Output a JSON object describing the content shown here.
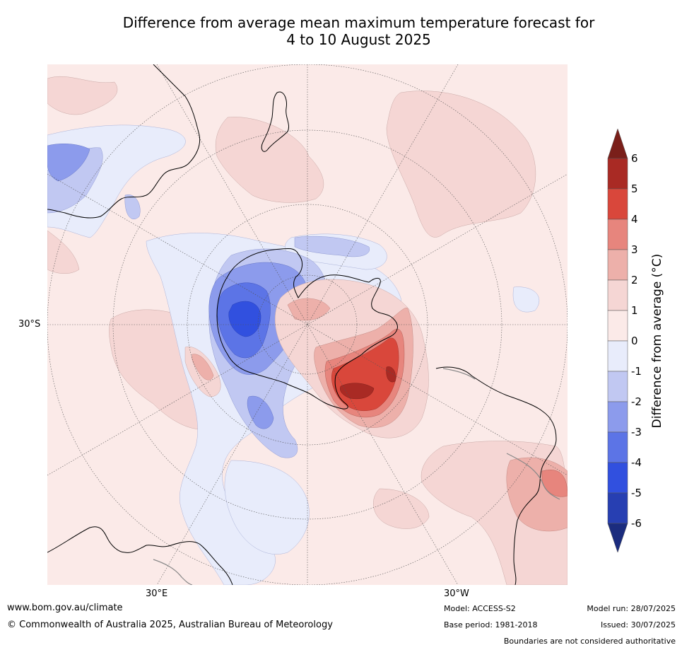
{
  "title_line1": "Difference from average mean maximum temperature forecast for",
  "title_line2": "4 to 10 August 2025",
  "latitude_label": "30°S",
  "longitude_labels": {
    "east": "30°E",
    "west": "30°W"
  },
  "legend": {
    "title": "Difference from average (°C)",
    "ticks": [
      "6",
      "5",
      "4",
      "3",
      "2",
      "1",
      "0",
      "-1",
      "-2",
      "-3",
      "-4",
      "-5",
      "-6"
    ],
    "colors": {
      "above_6": "#7a1f1a",
      "5_to_6": "#a92a24",
      "4_to_5": "#d9473b",
      "3_to_4": "#e7857d",
      "2_to_3": "#edb0aa",
      "1_to_2": "#f5d6d4",
      "0_to_1": "#fbeae8",
      "m1_to_0": "#e8ecfb",
      "m2_to_m1": "#c1c8f2",
      "m3_to_m2": "#8c9bec",
      "m4_to_m3": "#5c74e6",
      "m5_to_m4": "#3150df",
      "m6_to_m5": "#273fb2",
      "below_m6": "#1b2c7e"
    }
  },
  "footer": {
    "website": "www.bom.gov.au/climate",
    "copyright": "© Commonwealth of Australia 2025, Australian Bureau of Meteorology",
    "model": "Model: ACCESS-S2",
    "base_period": "Base period: 1981-2018",
    "model_run": "Model run: 28/07/2025",
    "issued": "Issued: 30/07/2025",
    "disclaimer": "Boundaries are not considered authoritative"
  }
}
